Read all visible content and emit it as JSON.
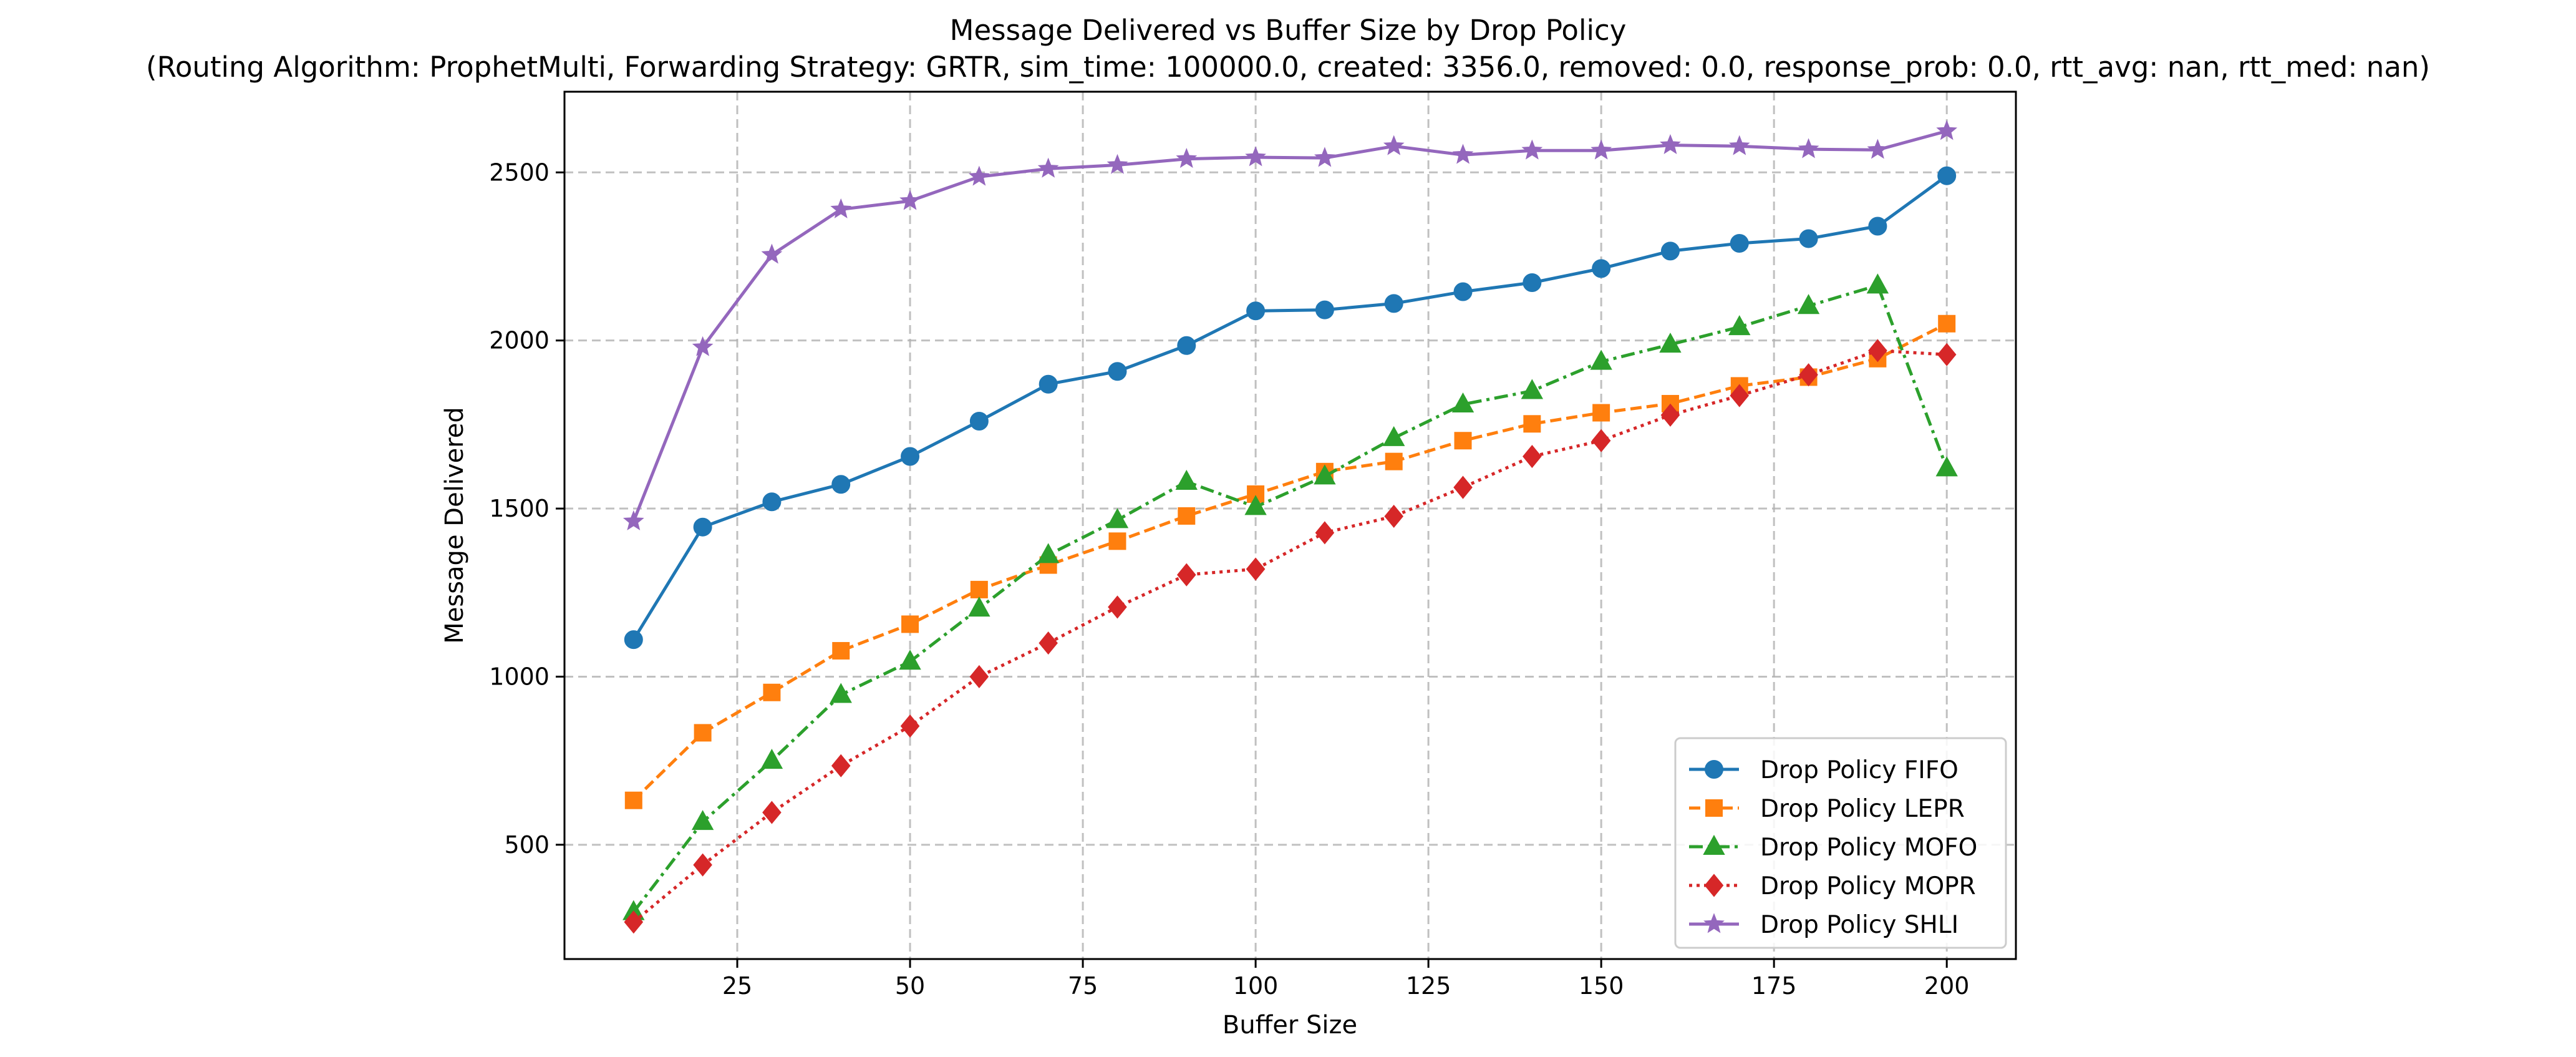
{
  "chart_data": {
    "type": "line",
    "title": "Message Delivered vs Buffer Size by Drop Policy",
    "subtitle": "(Routing Algorithm: ProphetMulti, Forwarding Strategy: GRTR, sim_time: 100000.0, created: 3356.0, removed: 0.0, response_prob: 0.0, rtt_avg: nan, rtt_med: nan)",
    "xlabel": "Buffer Size",
    "ylabel": "Message Delivered",
    "xlim": [
      0,
      210
    ],
    "ylim": [
      160,
      2740
    ],
    "xticks": [
      25,
      50,
      75,
      100,
      125,
      150,
      175,
      200
    ],
    "yticks": [
      500,
      1000,
      1500,
      2000,
      2500
    ],
    "grid": true,
    "legend_position": "lower-right",
    "x": [
      10,
      20,
      30,
      40,
      50,
      60,
      70,
      80,
      90,
      100,
      110,
      120,
      130,
      140,
      150,
      160,
      170,
      180,
      190,
      200
    ],
    "series": [
      {
        "name": "Drop Policy FIFO",
        "color": "#1f77b4",
        "marker": "circle",
        "line_style": "solid",
        "values": [
          1110,
          1445,
          1520,
          1572,
          1655,
          1760,
          1870,
          1908,
          1985,
          2088,
          2091,
          2110,
          2145,
          2172,
          2214,
          2266,
          2289,
          2303,
          2340,
          2490
        ]
      },
      {
        "name": "Drop Policy LEPR",
        "color": "#ff7f0e",
        "marker": "square",
        "line_style": "dashed",
        "values": [
          632,
          833,
          953,
          1077,
          1156,
          1259,
          1332,
          1403,
          1478,
          1543,
          1610,
          1640,
          1702,
          1752,
          1785,
          1812,
          1865,
          1891,
          1946,
          2050
        ]
      },
      {
        "name": "Drop Policy MOFO",
        "color": "#2ca02c",
        "marker": "triangle",
        "line_style": "dashdot",
        "values": [
          300,
          568,
          750,
          946,
          1045,
          1203,
          1362,
          1466,
          1580,
          1505,
          1596,
          1710,
          1810,
          1850,
          1937,
          1988,
          2040,
          2103,
          2164,
          1620
        ]
      },
      {
        "name": "Drop Policy MOPR",
        "color": "#d62728",
        "marker": "diamond",
        "line_style": "dotted",
        "values": [
          270,
          440,
          596,
          735,
          853,
          1000,
          1100,
          1207,
          1303,
          1320,
          1428,
          1477,
          1563,
          1655,
          1702,
          1778,
          1836,
          1898,
          1970,
          1958
        ]
      },
      {
        "name": "Drop Policy SHLI",
        "color": "#9467bd",
        "marker": "star",
        "line_style": "solid",
        "values": [
          1462,
          1980,
          2255,
          2390,
          2415,
          2487,
          2511,
          2522,
          2540,
          2545,
          2543,
          2578,
          2552,
          2565,
          2565,
          2581,
          2578,
          2569,
          2567,
          2623
        ]
      }
    ]
  }
}
